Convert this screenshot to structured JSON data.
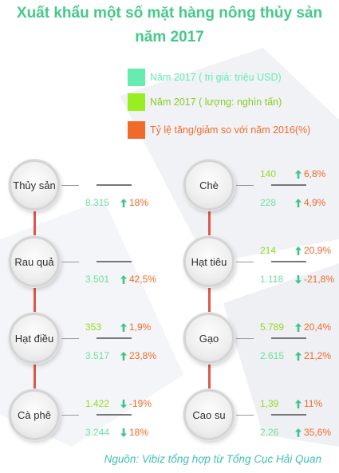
{
  "title": {
    "line1": "Xuất khẩu một số mặt hàng nông thủy sản",
    "line2": "năm 2017"
  },
  "legend": [
    {
      "label": "Năm 2017 ( trị giá: triệu USD)",
      "color": "#66ecb0",
      "text_color": "#66ecb0"
    },
    {
      "label": "Năm 2017 ( lượng: nghìn tấn)",
      "color": "#99ee22",
      "text_color": "#88cc22"
    },
    {
      "label": "Tỷ lệ tăng/giảm so với năm 2016(%)",
      "color": "#f06a2a",
      "text_color": "#f06a2a"
    }
  ],
  "items": [
    {
      "name": "Thủy sản",
      "value": "8.315",
      "value_change": "18%",
      "value_dir": "up"
    },
    {
      "name": "Rau quả",
      "value": "3.501",
      "value_change": "42,5%",
      "value_dir": "up"
    },
    {
      "name": "Hạt điều",
      "volume": "353",
      "volume_change": "1,9%",
      "volume_dir": "up",
      "value": "3.517",
      "value_change": "23,8%",
      "value_dir": "up"
    },
    {
      "name": "Cà phê",
      "volume": "1.422",
      "volume_change": "-19%",
      "volume_dir": "down",
      "value": "3.244",
      "value_change": "18%",
      "value_dir": "down"
    },
    {
      "name": "Chè",
      "volume": "140",
      "volume_change": "6,8%",
      "volume_dir": "up",
      "value": "228",
      "value_change": "4,9%",
      "value_dir": "up"
    },
    {
      "name": "Hạt tiêu",
      "volume": "214",
      "volume_change": "20,9%",
      "volume_dir": "up",
      "value": "1.118",
      "value_change": "-21,8%",
      "value_dir": "down"
    },
    {
      "name": "Gạo",
      "volume": "5.789",
      "volume_change": "20,4%",
      "volume_dir": "up",
      "value": "2.615",
      "value_change": "21,2%",
      "value_dir": "up"
    },
    {
      "name": "Cao su",
      "volume": "1,39",
      "volume_change": "11%",
      "volume_dir": "up",
      "value": "2,26",
      "value_change": "35,6%",
      "value_dir": "up"
    }
  ],
  "colors": {
    "title": "#45c98a",
    "value": "#6ee0a0",
    "volume": "#96d822",
    "change": "#f06a2a",
    "connector": "#e0564c",
    "source": "#3fc0b4"
  },
  "source": "Nguồn: Vibiz tổng hợp từ Tổng Cục Hải Quan"
}
